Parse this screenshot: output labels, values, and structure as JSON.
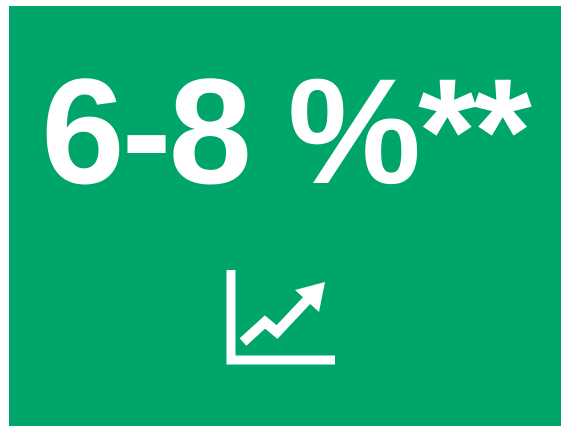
{
  "headline": "6-8 %**"
}
